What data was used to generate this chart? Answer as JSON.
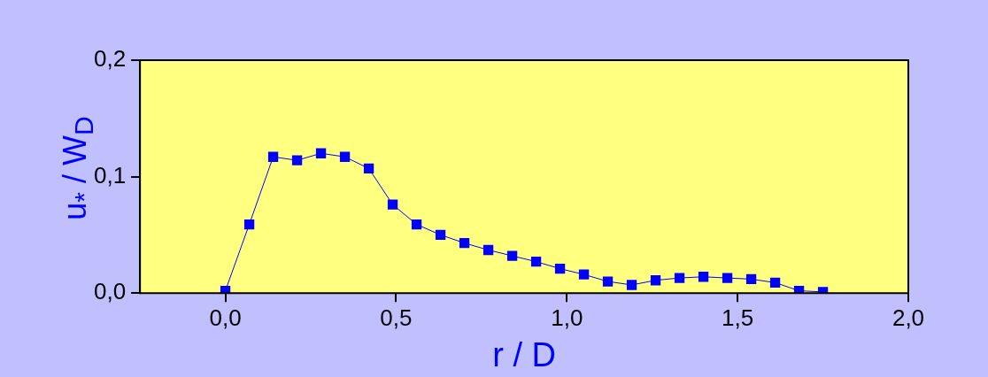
{
  "chart_data": {
    "type": "line",
    "xlabel": "r / D",
    "ylabel": "u$_{*}$ / W$_{D}$",
    "x": [
      0,
      0.07,
      0.14,
      0.21,
      0.28,
      0.35,
      0.42,
      0.49,
      0.56,
      0.63,
      0.7,
      0.77,
      0.84,
      0.91,
      0.98,
      1.05,
      1.12,
      1.19,
      1.26,
      1.33,
      1.4,
      1.47,
      1.54,
      1.61,
      1.68,
      1.75
    ],
    "series": [
      {
        "color": "#0000ff",
        "values": [
          0.002,
          0.059,
          0.117,
          0.114,
          0.12,
          0.117,
          0.107,
          0.076,
          0.059,
          0.05,
          0.043,
          0.037,
          0.032,
          0.027,
          0.021,
          0.016,
          0.01,
          0.007,
          0.011,
          0.013,
          0.014,
          0.013,
          0.012,
          0.009,
          0.002,
          0.001
        ]
      }
    ],
    "xlim": [
      -0.25,
      2.0
    ],
    "ylim": [
      0,
      0.2
    ],
    "xticks": [
      {
        "value": 0,
        "label": "0,0"
      },
      {
        "value": 0.5,
        "label": "0,5"
      },
      {
        "value": 1,
        "label": "1,0"
      },
      {
        "value": 1.5,
        "label": "1,5"
      },
      {
        "value": 2,
        "label": "2,0"
      }
    ],
    "yticks": [
      {
        "value": 0,
        "label": "0,0"
      },
      {
        "value": 0.1,
        "label": "0,1"
      },
      {
        "value": 0.2,
        "label": "0,2"
      }
    ],
    "marker": "square",
    "line_style": "solid",
    "legend": false
  }
}
